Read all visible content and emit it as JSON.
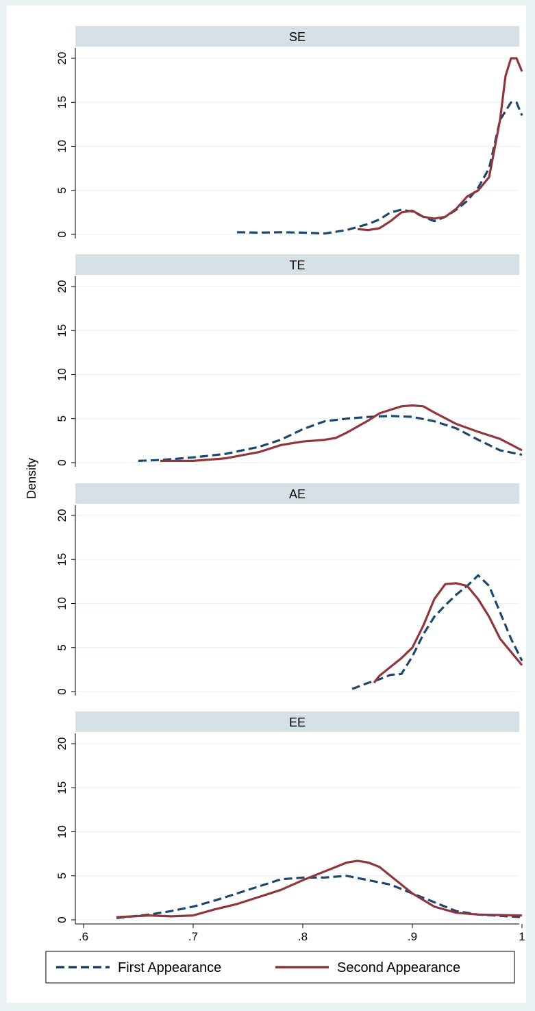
{
  "chart_data": {
    "type": "line",
    "ylabel": "Density",
    "xlabel": "",
    "xlim": [
      0.6,
      1.0
    ],
    "ylim": [
      0,
      21
    ],
    "x_ticks": [
      ".6",
      ".7",
      ".8",
      ".9",
      "1"
    ],
    "y_ticks": [
      "0",
      "5",
      "10",
      "15",
      "20"
    ],
    "grid": "horizontal",
    "legend_position": "bottom",
    "colors": {
      "first": "#1a476f",
      "second": "#90353b",
      "strip": "#d5e1e6",
      "background": "#eaf2f3"
    },
    "series_styles": [
      {
        "name": "First Appearance",
        "dash": "dashed"
      },
      {
        "name": "Second Appearance",
        "dash": "solid"
      }
    ],
    "panels": [
      {
        "label": "SE",
        "series": [
          {
            "name": "First Appearance",
            "points": [
              [
                0.74,
                0.25
              ],
              [
                0.76,
                0.2
              ],
              [
                0.78,
                0.25
              ],
              [
                0.8,
                0.2
              ],
              [
                0.82,
                0.1
              ],
              [
                0.84,
                0.5
              ],
              [
                0.86,
                1.2
              ],
              [
                0.87,
                1.7
              ],
              [
                0.88,
                2.5
              ],
              [
                0.89,
                2.8
              ],
              [
                0.9,
                2.6
              ],
              [
                0.91,
                2.0
              ],
              [
                0.92,
                1.5
              ],
              [
                0.93,
                2.0
              ],
              [
                0.94,
                2.8
              ],
              [
                0.95,
                3.8
              ],
              [
                0.96,
                5.3
              ],
              [
                0.97,
                7.5
              ],
              [
                0.98,
                13.0
              ],
              [
                0.99,
                15.0
              ],
              [
                0.995,
                15.0
              ],
              [
                1.0,
                13.5
              ]
            ]
          },
          {
            "name": "Second Appearance",
            "points": [
              [
                0.85,
                0.6
              ],
              [
                0.86,
                0.5
              ],
              [
                0.87,
                0.7
              ],
              [
                0.88,
                1.5
              ],
              [
                0.89,
                2.5
              ],
              [
                0.9,
                2.7
              ],
              [
                0.91,
                2.0
              ],
              [
                0.92,
                1.8
              ],
              [
                0.93,
                2.0
              ],
              [
                0.94,
                2.9
              ],
              [
                0.95,
                4.3
              ],
              [
                0.96,
                5.0
              ],
              [
                0.97,
                6.5
              ],
              [
                0.98,
                13.0
              ],
              [
                0.985,
                18.0
              ],
              [
                0.99,
                20.0
              ],
              [
                0.995,
                20.0
              ],
              [
                1.0,
                18.5
              ]
            ]
          }
        ]
      },
      {
        "label": "TE",
        "series": [
          {
            "name": "First Appearance",
            "points": [
              [
                0.65,
                0.2
              ],
              [
                0.67,
                0.3
              ],
              [
                0.7,
                0.6
              ],
              [
                0.73,
                1.0
              ],
              [
                0.76,
                1.8
              ],
              [
                0.78,
                2.6
              ],
              [
                0.8,
                3.8
              ],
              [
                0.82,
                4.7
              ],
              [
                0.84,
                5.0
              ],
              [
                0.86,
                5.2
              ],
              [
                0.88,
                5.3
              ],
              [
                0.9,
                5.2
              ],
              [
                0.92,
                4.7
              ],
              [
                0.94,
                3.9
              ],
              [
                0.96,
                2.6
              ],
              [
                0.98,
                1.4
              ],
              [
                1.0,
                0.9
              ]
            ]
          },
          {
            "name": "Second Appearance",
            "points": [
              [
                0.67,
                0.2
              ],
              [
                0.7,
                0.2
              ],
              [
                0.73,
                0.5
              ],
              [
                0.76,
                1.2
              ],
              [
                0.78,
                2.0
              ],
              [
                0.8,
                2.4
              ],
              [
                0.82,
                2.6
              ],
              [
                0.83,
                2.8
              ],
              [
                0.84,
                3.4
              ],
              [
                0.86,
                4.8
              ],
              [
                0.87,
                5.6
              ],
              [
                0.88,
                6.0
              ],
              [
                0.89,
                6.4
              ],
              [
                0.9,
                6.5
              ],
              [
                0.91,
                6.4
              ],
              [
                0.92,
                5.7
              ],
              [
                0.94,
                4.4
              ],
              [
                0.96,
                3.5
              ],
              [
                0.98,
                2.7
              ],
              [
                1.0,
                1.4
              ]
            ]
          }
        ]
      },
      {
        "label": "AE",
        "series": [
          {
            "name": "First Appearance",
            "points": [
              [
                0.845,
                0.3
              ],
              [
                0.86,
                1.0
              ],
              [
                0.87,
                1.4
              ],
              [
                0.88,
                1.9
              ],
              [
                0.89,
                2.0
              ],
              [
                0.9,
                4.0
              ],
              [
                0.91,
                6.5
              ],
              [
                0.92,
                8.5
              ],
              [
                0.93,
                9.8
              ],
              [
                0.94,
                11.0
              ],
              [
                0.95,
                12.0
              ],
              [
                0.96,
                13.2
              ],
              [
                0.97,
                12.0
              ],
              [
                0.98,
                9.0
              ],
              [
                0.99,
                6.0
              ],
              [
                1.0,
                3.5
              ]
            ]
          },
          {
            "name": "Second Appearance",
            "points": [
              [
                0.865,
                1.0
              ],
              [
                0.87,
                1.8
              ],
              [
                0.88,
                2.8
              ],
              [
                0.89,
                3.8
              ],
              [
                0.9,
                5.0
              ],
              [
                0.91,
                7.5
              ],
              [
                0.92,
                10.5
              ],
              [
                0.93,
                12.2
              ],
              [
                0.94,
                12.3
              ],
              [
                0.95,
                12.0
              ],
              [
                0.96,
                10.5
              ],
              [
                0.97,
                8.5
              ],
              [
                0.98,
                6.0
              ],
              [
                0.99,
                4.5
              ],
              [
                1.0,
                3.0
              ]
            ]
          }
        ]
      },
      {
        "label": "EE",
        "series": [
          {
            "name": "First Appearance",
            "points": [
              [
                0.63,
                0.2
              ],
              [
                0.66,
                0.6
              ],
              [
                0.68,
                1.0
              ],
              [
                0.7,
                1.5
              ],
              [
                0.72,
                2.2
              ],
              [
                0.74,
                3.0
              ],
              [
                0.76,
                3.8
              ],
              [
                0.78,
                4.6
              ],
              [
                0.8,
                4.8
              ],
              [
                0.82,
                4.8
              ],
              [
                0.84,
                5.0
              ],
              [
                0.86,
                4.5
              ],
              [
                0.88,
                4.0
              ],
              [
                0.9,
                3.0
              ],
              [
                0.92,
                2.0
              ],
              [
                0.94,
                1.0
              ],
              [
                0.96,
                0.6
              ],
              [
                1.0,
                0.3
              ]
            ]
          },
          {
            "name": "Second Appearance",
            "points": [
              [
                0.63,
                0.3
              ],
              [
                0.66,
                0.5
              ],
              [
                0.68,
                0.4
              ],
              [
                0.7,
                0.5
              ],
              [
                0.72,
                1.2
              ],
              [
                0.74,
                1.8
              ],
              [
                0.76,
                2.6
              ],
              [
                0.78,
                3.4
              ],
              [
                0.8,
                4.5
              ],
              [
                0.82,
                5.5
              ],
              [
                0.84,
                6.5
              ],
              [
                0.85,
                6.7
              ],
              [
                0.86,
                6.5
              ],
              [
                0.87,
                6.0
              ],
              [
                0.88,
                5.0
              ],
              [
                0.9,
                3.0
              ],
              [
                0.92,
                1.5
              ],
              [
                0.94,
                0.8
              ],
              [
                0.96,
                0.6
              ],
              [
                1.0,
                0.5
              ]
            ]
          }
        ]
      }
    ]
  }
}
